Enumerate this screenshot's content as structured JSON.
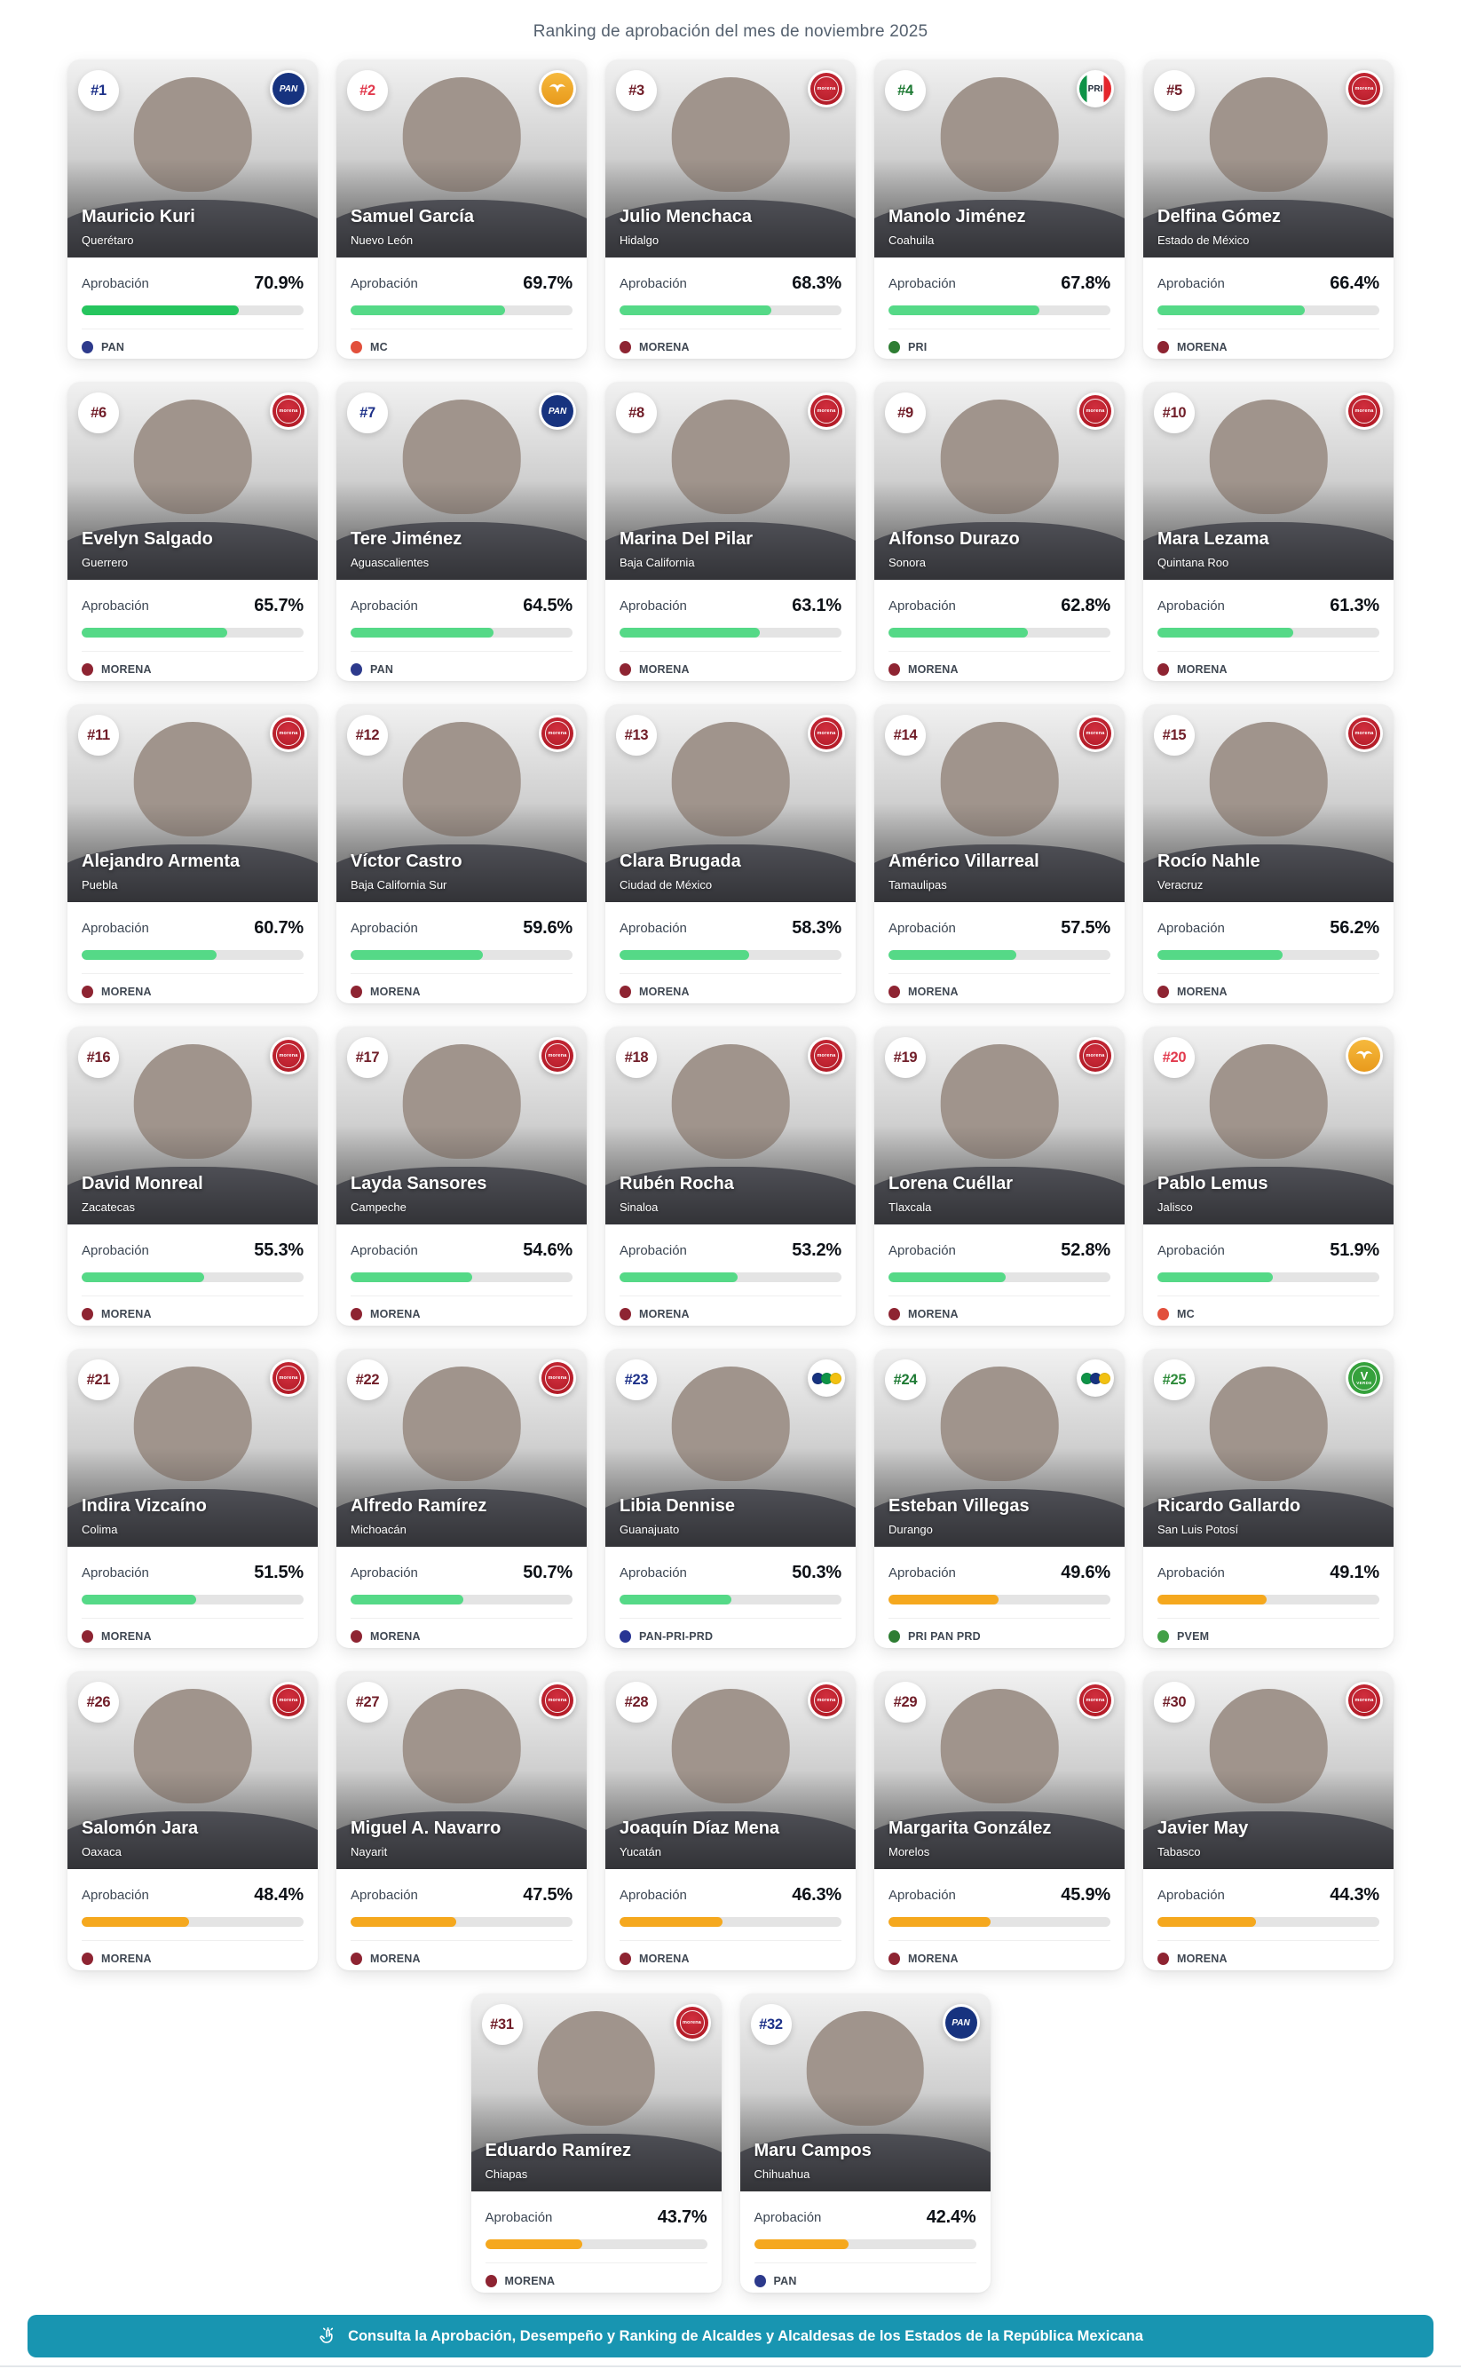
{
  "header": {
    "title": "Ranking de aprobación del mes de noviembre 2025"
  },
  "labels": {
    "approval": "Aprobación"
  },
  "colors": {
    "bar_green_dark": "#26c55e",
    "bar_green": "#55d987",
    "bar_orange": "#f5a81e",
    "bar_track": "#e4e4e4",
    "footer_teal": "#1895b1"
  },
  "parties": {
    "pan": {
      "dot": "#2d3a8c",
      "rank": "#1d3189"
    },
    "mc": {
      "dot": "#e2503c",
      "rank": "#e23b4e"
    },
    "morena": {
      "dot": "#8e2432",
      "rank": "#701d28"
    },
    "pri": {
      "dot": "#2e7d33",
      "rank": "#1e7a34"
    },
    "pvem": {
      "dot": "#43a047",
      "rank": "#2e8b3a"
    },
    "pan-pri-prd": {
      "dot": "#283593",
      "rank": "#1d3189"
    },
    "pri-pan-prd": {
      "dot": "#2e7d33",
      "rank": "#1e7a34"
    }
  },
  "cards": [
    {
      "rank": "#1",
      "name": "Mauricio Kuri",
      "state": "Querétaro",
      "approval": "70.9%",
      "pct": 70.9,
      "party": "PAN",
      "party_key": "pan"
    },
    {
      "rank": "#2",
      "name": "Samuel García",
      "state": "Nuevo León",
      "approval": "69.7%",
      "pct": 69.7,
      "party": "MC",
      "party_key": "mc"
    },
    {
      "rank": "#3",
      "name": "Julio Menchaca",
      "state": "Hidalgo",
      "approval": "68.3%",
      "pct": 68.3,
      "party": "MORENA",
      "party_key": "morena"
    },
    {
      "rank": "#4",
      "name": "Manolo Jiménez",
      "state": "Coahuila",
      "approval": "67.8%",
      "pct": 67.8,
      "party": "PRI",
      "party_key": "pri"
    },
    {
      "rank": "#5",
      "name": "Delfina Gómez",
      "state": "Estado de México",
      "approval": "66.4%",
      "pct": 66.4,
      "party": "MORENA",
      "party_key": "morena"
    },
    {
      "rank": "#6",
      "name": "Evelyn Salgado",
      "state": "Guerrero",
      "approval": "65.7%",
      "pct": 65.7,
      "party": "MORENA",
      "party_key": "morena"
    },
    {
      "rank": "#7",
      "name": "Tere Jiménez",
      "state": "Aguascalientes",
      "approval": "64.5%",
      "pct": 64.5,
      "party": "PAN",
      "party_key": "pan"
    },
    {
      "rank": "#8",
      "name": "Marina Del Pilar",
      "state": "Baja California",
      "approval": "63.1%",
      "pct": 63.1,
      "party": "MORENA",
      "party_key": "morena"
    },
    {
      "rank": "#9",
      "name": "Alfonso Durazo",
      "state": "Sonora",
      "approval": "62.8%",
      "pct": 62.8,
      "party": "MORENA",
      "party_key": "morena"
    },
    {
      "rank": "#10",
      "name": "Mara Lezama",
      "state": "Quintana Roo",
      "approval": "61.3%",
      "pct": 61.3,
      "party": "MORENA",
      "party_key": "morena"
    },
    {
      "rank": "#11",
      "name": "Alejandro Armenta",
      "state": "Puebla",
      "approval": "60.7%",
      "pct": 60.7,
      "party": "MORENA",
      "party_key": "morena"
    },
    {
      "rank": "#12",
      "name": "Víctor Castro",
      "state": "Baja California Sur",
      "approval": "59.6%",
      "pct": 59.6,
      "party": "MORENA",
      "party_key": "morena"
    },
    {
      "rank": "#13",
      "name": "Clara Brugada",
      "state": "Ciudad de México",
      "approval": "58.3%",
      "pct": 58.3,
      "party": "MORENA",
      "party_key": "morena"
    },
    {
      "rank": "#14",
      "name": "Américo Villarreal",
      "state": "Tamaulipas",
      "approval": "57.5%",
      "pct": 57.5,
      "party": "MORENA",
      "party_key": "morena"
    },
    {
      "rank": "#15",
      "name": "Rocío Nahle",
      "state": "Veracruz",
      "approval": "56.2%",
      "pct": 56.2,
      "party": "MORENA",
      "party_key": "morena"
    },
    {
      "rank": "#16",
      "name": "David Monreal",
      "state": "Zacatecas",
      "approval": "55.3%",
      "pct": 55.3,
      "party": "MORENA",
      "party_key": "morena"
    },
    {
      "rank": "#17",
      "name": "Layda Sansores",
      "state": "Campeche",
      "approval": "54.6%",
      "pct": 54.6,
      "party": "MORENA",
      "party_key": "morena"
    },
    {
      "rank": "#18",
      "name": "Rubén Rocha",
      "state": "Sinaloa",
      "approval": "53.2%",
      "pct": 53.2,
      "party": "MORENA",
      "party_key": "morena"
    },
    {
      "rank": "#19",
      "name": "Lorena Cuéllar",
      "state": "Tlaxcala",
      "approval": "52.8%",
      "pct": 52.8,
      "party": "MORENA",
      "party_key": "morena"
    },
    {
      "rank": "#20",
      "name": "Pablo Lemus",
      "state": "Jalisco",
      "approval": "51.9%",
      "pct": 51.9,
      "party": "MC",
      "party_key": "mc"
    },
    {
      "rank": "#21",
      "name": "Indira Vizcaíno",
      "state": "Colima",
      "approval": "51.5%",
      "pct": 51.5,
      "party": "MORENA",
      "party_key": "morena"
    },
    {
      "rank": "#22",
      "name": "Alfredo Ramírez",
      "state": "Michoacán",
      "approval": "50.7%",
      "pct": 50.7,
      "party": "MORENA",
      "party_key": "morena"
    },
    {
      "rank": "#23",
      "name": "Libia Dennise",
      "state": "Guanajuato",
      "approval": "50.3%",
      "pct": 50.3,
      "party": "PAN-PRI-PRD",
      "party_key": "pan-pri-prd"
    },
    {
      "rank": "#24",
      "name": "Esteban Villegas",
      "state": "Durango",
      "approval": "49.6%",
      "pct": 49.6,
      "party": "PRI PAN PRD",
      "party_key": "pri-pan-prd"
    },
    {
      "rank": "#25",
      "name": "Ricardo Gallardo",
      "state": "San Luis Potosí",
      "approval": "49.1%",
      "pct": 49.1,
      "party": "PVEM",
      "party_key": "pvem"
    },
    {
      "rank": "#26",
      "name": "Salomón Jara",
      "state": "Oaxaca",
      "approval": "48.4%",
      "pct": 48.4,
      "party": "MORENA",
      "party_key": "morena"
    },
    {
      "rank": "#27",
      "name": "Miguel A. Navarro",
      "state": "Nayarit",
      "approval": "47.5%",
      "pct": 47.5,
      "party": "MORENA",
      "party_key": "morena"
    },
    {
      "rank": "#28",
      "name": "Joaquín Díaz Mena",
      "state": "Yucatán",
      "approval": "46.3%",
      "pct": 46.3,
      "party": "MORENA",
      "party_key": "morena"
    },
    {
      "rank": "#29",
      "name": "Margarita González",
      "state": "Morelos",
      "approval": "45.9%",
      "pct": 45.9,
      "party": "MORENA",
      "party_key": "morena"
    },
    {
      "rank": "#30",
      "name": "Javier May",
      "state": "Tabasco",
      "approval": "44.3%",
      "pct": 44.3,
      "party": "MORENA",
      "party_key": "morena"
    },
    {
      "rank": "#31",
      "name": "Eduardo Ramírez",
      "state": "Chiapas",
      "approval": "43.7%",
      "pct": 43.7,
      "party": "MORENA",
      "party_key": "morena"
    },
    {
      "rank": "#32",
      "name": "Maru Campos",
      "state": "Chihuahua",
      "approval": "42.4%",
      "pct": 42.4,
      "party": "PAN",
      "party_key": "pan"
    }
  ],
  "footer": {
    "label": "Consulta la Aprobación, Desempeño y Ranking de Alcaldes y Alcaldesas de los Estados de la República Mexicana"
  }
}
